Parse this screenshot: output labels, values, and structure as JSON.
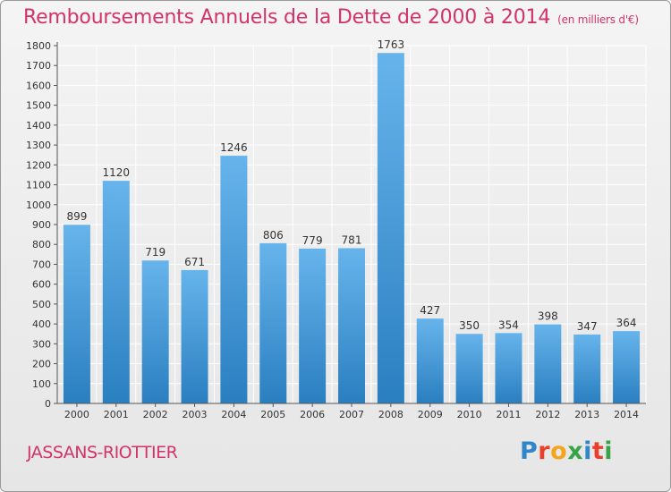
{
  "header": {
    "title": "Remboursements Annuels de la Dette de 2000 à 2014",
    "unit_note": "(en milliers d'€)"
  },
  "footer": {
    "city": "JASSANS-RIOTTIER",
    "logo_text": "Proxiti",
    "logo_colors": [
      "#2f86c9",
      "#e8402a",
      "#f4a51c",
      "#3aa348",
      "#2f86c9",
      "#e8402a",
      "#3aa348"
    ]
  },
  "colors": {
    "title": "#d2336a",
    "bar_top": "#67b4ec",
    "bar_bottom": "#2a7fc0",
    "grid": "#ffffff"
  },
  "chart_data": {
    "type": "bar",
    "title": "Remboursements Annuels de la Dette de 2000 à 2014",
    "subtitle": "(en milliers d'€)",
    "xlabel": "",
    "ylabel": "",
    "categories": [
      "2000",
      "2001",
      "2002",
      "2003",
      "2004",
      "2005",
      "2006",
      "2007",
      "2008",
      "2009",
      "2010",
      "2011",
      "2012",
      "2013",
      "2014"
    ],
    "values": [
      899,
      1120,
      719,
      671,
      1246,
      806,
      779,
      781,
      1763,
      427,
      350,
      354,
      398,
      347,
      364
    ],
    "ylim": [
      0,
      1800
    ],
    "yticks": [
      0,
      100,
      200,
      300,
      400,
      500,
      600,
      700,
      800,
      900,
      1000,
      1100,
      1200,
      1300,
      1400,
      1500,
      1600,
      1700,
      1800
    ],
    "grid": true,
    "legend": "none",
    "data_labels": true
  }
}
